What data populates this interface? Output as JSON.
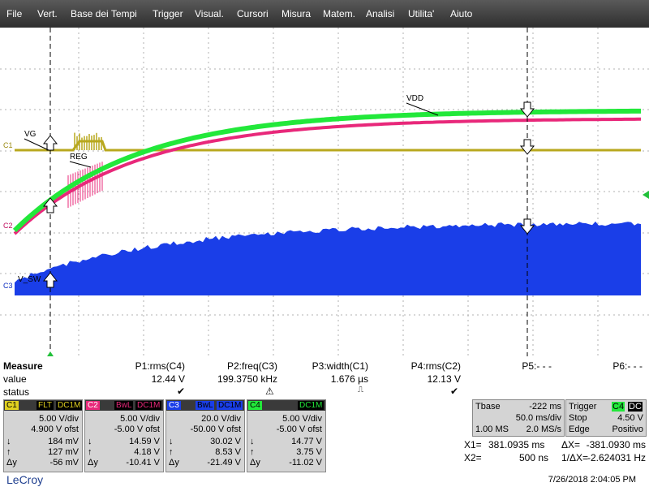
{
  "menu": [
    "File",
    "Vert.",
    "Base dei Tempi",
    "Trigger",
    "Visual.",
    "Cursori",
    "Misura",
    "Matem.",
    "Analisi",
    "Utilita'",
    "Aiuto"
  ],
  "traces": {
    "labels": {
      "vg": "VG",
      "reg": "REG",
      "vdd": "VDD",
      "vsw": "V_SW"
    },
    "markers": {
      "c1": "C1",
      "c2": "C2",
      "c3": "C3"
    },
    "colors": {
      "c1": "#b8a81e",
      "c2": "#e8287a",
      "c3": "#1a3ee8",
      "c4": "#22e83a"
    }
  },
  "measure": {
    "title": "Measure",
    "row_labels": {
      "value": "value",
      "status": "status"
    },
    "params": [
      {
        "name": "P1:rms(C4)",
        "value": "12.44 V",
        "status": "check"
      },
      {
        "name": "P2:freq(C3)",
        "value": "199.3750 kHz",
        "status": "warning"
      },
      {
        "name": "P3:width(C1)",
        "value": "1.676 µs",
        "status": "pulse"
      },
      {
        "name": "P4:rms(C2)",
        "value": "12.13 V",
        "status": "check"
      },
      {
        "name": "P5:- - -",
        "value": "",
        "status": ""
      },
      {
        "name": "P6:- - -",
        "value": "",
        "status": ""
      }
    ]
  },
  "channels": [
    {
      "id": "C1",
      "tags": [
        "FLT",
        "DC1M"
      ],
      "vdiv": "5.00 V/div",
      "ofst": "4.900 V ofst",
      "down": "184 mV",
      "up": "127 mV",
      "dy": "-56 mV",
      "color": "#e0d020"
    },
    {
      "id": "C2",
      "tags": [
        "BwL",
        "DC1M"
      ],
      "vdiv": "5.00 V/div",
      "ofst": "-5.00 V ofst",
      "down": "14.59 V",
      "up": "4.18 V",
      "dy": "-10.41 V",
      "color": "#e8287a"
    },
    {
      "id": "C3",
      "tags": [
        "BwL",
        "DC1M"
      ],
      "vdiv": "20.0 V/div",
      "ofst": "-50.00 V ofst",
      "down": "30.02 V",
      "up": "8.53 V",
      "dy": "-21.49 V",
      "color": "#1a3ee8"
    },
    {
      "id": "C4",
      "tags": [
        "DC1M"
      ],
      "vdiv": "5.00 V/div",
      "ofst": "-5.00 V ofst",
      "down": "14.77 V",
      "up": "3.75 V",
      "dy": "-11.02 V",
      "color": "#22e83a"
    }
  ],
  "symbols": {
    "down": "↓",
    "up": "↑",
    "dy": "Δy"
  },
  "timebase": {
    "label": "Tbase",
    "value": "-222 ms",
    "div": "50.0 ms/div",
    "ms": "1.00 MS",
    "rate": "2.0 MS/s"
  },
  "trigger": {
    "label": "Trigger",
    "tags": [
      "C4",
      "DC"
    ],
    "mode": "Stop",
    "level": "4.50 V",
    "type": "Edge",
    "slope": "Positivo"
  },
  "cursors": {
    "x1_label": "X1=",
    "x1": "381.0935 ms",
    "dx_label": "ΔX=",
    "dx": "-381.0930 ms",
    "x2_label": "X2=",
    "x2": "500 ns",
    "inv_label": "1/ΔX=",
    "inv": "-2.624031 Hz"
  },
  "logo": "LeCroy",
  "timestamp": "7/26/2018 2:04:05 PM"
}
